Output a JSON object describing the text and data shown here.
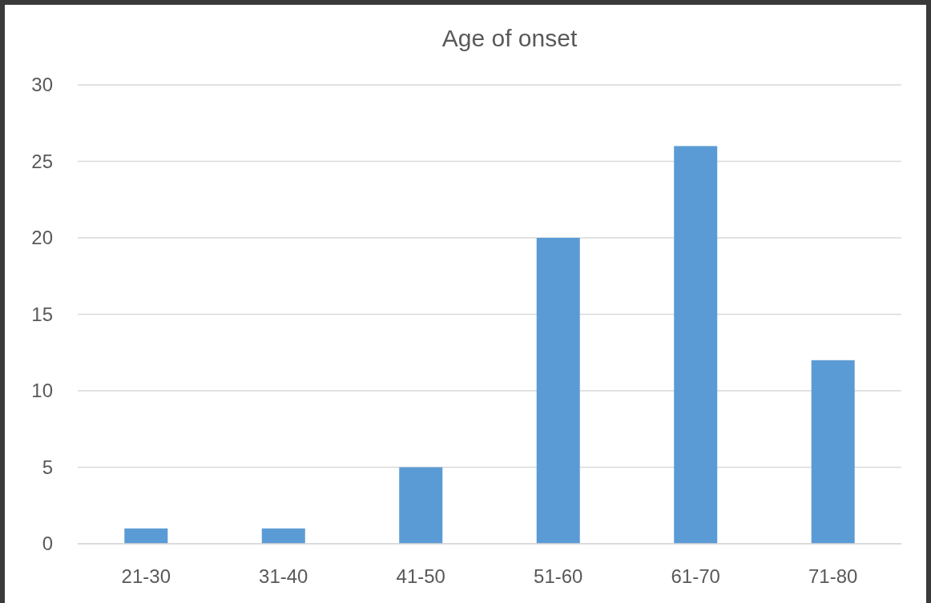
{
  "chart_data": {
    "type": "bar",
    "title": "Age of onset",
    "categories": [
      "21-30",
      "31-40",
      "41-50",
      "51-60",
      "61-70",
      "71-80"
    ],
    "values": [
      1,
      1,
      5,
      20,
      26,
      12
    ],
    "color": "#5b9bd5",
    "ylim": [
      0,
      30
    ],
    "yticks": [
      0,
      5,
      10,
      15,
      20,
      25,
      30
    ],
    "grid": "y"
  }
}
